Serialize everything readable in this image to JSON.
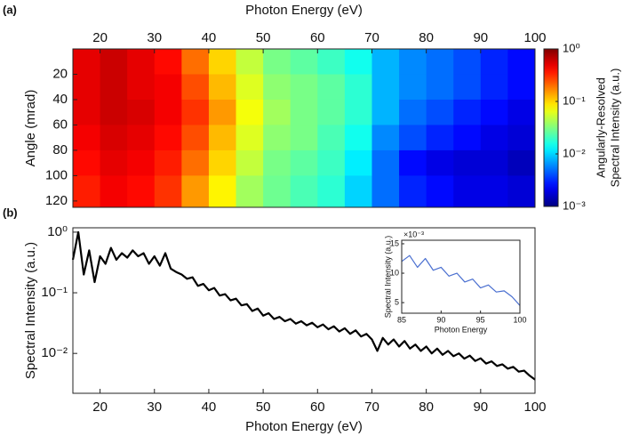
{
  "chart_data": [
    {
      "type": "heatmap",
      "panel_label": "(a)",
      "xlabel": "Photon Energy (eV)",
      "ylabel": "Angle (mrad)",
      "colorbar_label": [
        "Angularly-Resolved",
        "Spectral Intensity (a.u.)"
      ],
      "colormap": "jet",
      "log_color": true,
      "xlim": [
        15,
        100
      ],
      "xticks": [
        20,
        30,
        40,
        50,
        60,
        70,
        80,
        90,
        100
      ],
      "ylim": [
        0,
        125
      ],
      "yticks": [
        20,
        40,
        60,
        80,
        100,
        120
      ],
      "y_inverted": true,
      "clim": [
        0.001,
        1
      ],
      "cticks": [
        {
          "value": 0.001,
          "label": "10⁻³"
        },
        {
          "value": 0.01,
          "label": "10⁻²"
        },
        {
          "value": 0.1,
          "label": "10⁻¹"
        },
        {
          "value": 1,
          "label": "10⁰"
        }
      ],
      "x_edges": [
        15,
        20,
        25,
        30,
        35,
        40,
        45,
        50,
        55,
        60,
        65,
        70,
        75,
        80,
        85,
        90,
        95,
        100
      ],
      "y_edges": [
        0,
        20,
        40,
        60,
        80,
        100,
        125
      ],
      "z": [
        [
          0.5,
          0.6,
          0.5,
          0.4,
          0.2,
          0.1,
          0.05,
          0.03,
          0.025,
          0.02,
          0.015,
          0.008,
          0.006,
          0.005,
          0.004,
          0.003,
          0.0025
        ],
        [
          0.5,
          0.6,
          0.5,
          0.45,
          0.25,
          0.12,
          0.06,
          0.035,
          0.03,
          0.025,
          0.018,
          0.008,
          0.006,
          0.005,
          0.004,
          0.003,
          0.0025
        ],
        [
          0.5,
          0.6,
          0.55,
          0.45,
          0.3,
          0.15,
          0.07,
          0.04,
          0.03,
          0.025,
          0.018,
          0.008,
          0.005,
          0.004,
          0.003,
          0.0025,
          0.002
        ],
        [
          0.45,
          0.55,
          0.5,
          0.4,
          0.25,
          0.12,
          0.06,
          0.035,
          0.03,
          0.022,
          0.015,
          0.006,
          0.004,
          0.003,
          0.0025,
          0.002,
          0.0018
        ],
        [
          0.4,
          0.5,
          0.45,
          0.35,
          0.2,
          0.1,
          0.05,
          0.03,
          0.025,
          0.02,
          0.012,
          0.005,
          0.0025,
          0.002,
          0.0018,
          0.0018,
          0.0015
        ],
        [
          0.35,
          0.45,
          0.4,
          0.3,
          0.15,
          0.08,
          0.04,
          0.028,
          0.022,
          0.018,
          0.01,
          0.005,
          0.003,
          0.0025,
          0.002,
          0.002,
          0.0018
        ]
      ]
    },
    {
      "type": "line",
      "panel_label": "(b)",
      "xlabel": "Photon Energy (eV)",
      "ylabel": "Spectral Intensity (a.u.)",
      "log_y": true,
      "color": "#000000",
      "xlim": [
        15,
        100
      ],
      "xticks": [
        20,
        30,
        40,
        50,
        60,
        70,
        80,
        90,
        100
      ],
      "ylim": [
        0.0022,
        1.18
      ],
      "yticks": [
        {
          "value": 0.01,
          "label": "10⁻²"
        },
        {
          "value": 0.1,
          "label": "10⁻¹"
        },
        {
          "value": 1,
          "label": "10⁰"
        }
      ],
      "x": [
        15,
        16,
        17,
        18,
        19,
        20,
        21,
        22,
        23,
        24,
        25,
        26,
        27,
        28,
        29,
        30,
        31,
        32,
        33,
        34,
        35,
        36,
        37,
        38,
        39,
        40,
        41,
        42,
        43,
        44,
        45,
        46,
        47,
        48,
        49,
        50,
        51,
        52,
        53,
        54,
        55,
        56,
        57,
        58,
        59,
        60,
        61,
        62,
        63,
        64,
        65,
        66,
        67,
        68,
        69,
        70,
        71,
        72,
        73,
        74,
        75,
        76,
        77,
        78,
        79,
        80,
        81,
        82,
        83,
        84,
        85,
        86,
        87,
        88,
        89,
        90,
        91,
        92,
        93,
        94,
        95,
        96,
        97,
        98,
        99,
        100
      ],
      "values": [
        0.35,
        1.0,
        0.2,
        0.5,
        0.15,
        0.4,
        0.3,
        0.55,
        0.35,
        0.45,
        0.38,
        0.5,
        0.4,
        0.45,
        0.3,
        0.4,
        0.28,
        0.45,
        0.25,
        0.22,
        0.2,
        0.17,
        0.18,
        0.13,
        0.14,
        0.11,
        0.12,
        0.09,
        0.095,
        0.075,
        0.08,
        0.062,
        0.065,
        0.05,
        0.055,
        0.042,
        0.046,
        0.037,
        0.04,
        0.034,
        0.037,
        0.031,
        0.034,
        0.029,
        0.032,
        0.027,
        0.03,
        0.025,
        0.028,
        0.023,
        0.026,
        0.021,
        0.024,
        0.019,
        0.021,
        0.017,
        0.011,
        0.018,
        0.014,
        0.017,
        0.013,
        0.016,
        0.012,
        0.014,
        0.011,
        0.013,
        0.01,
        0.012,
        0.0095,
        0.011,
        0.009,
        0.01,
        0.0082,
        0.0092,
        0.0075,
        0.0083,
        0.0068,
        0.0074,
        0.0062,
        0.0066,
        0.0056,
        0.006,
        0.005,
        0.0052,
        0.0043,
        0.0037
      ]
    },
    {
      "type": "line",
      "inset": true,
      "xlabel": "Photon Energy",
      "ylabel": "Spectral Intensity (a.u.)",
      "y_multiplier": "×10⁻³",
      "color": "#4a6fd0",
      "xlim": [
        85,
        100
      ],
      "xticks": [
        85,
        90,
        95,
        100
      ],
      "ylim": [
        3.2,
        15.6
      ],
      "yticks": [
        5,
        10,
        15
      ],
      "x": [
        85,
        86,
        87,
        88,
        89,
        90,
        91,
        92,
        93,
        94,
        95,
        96,
        97,
        98,
        99,
        100
      ],
      "values": [
        12,
        13,
        11,
        12.5,
        10.5,
        11,
        9.5,
        10,
        8.5,
        9,
        7.5,
        8,
        6.8,
        7,
        6,
        4.5
      ]
    }
  ]
}
